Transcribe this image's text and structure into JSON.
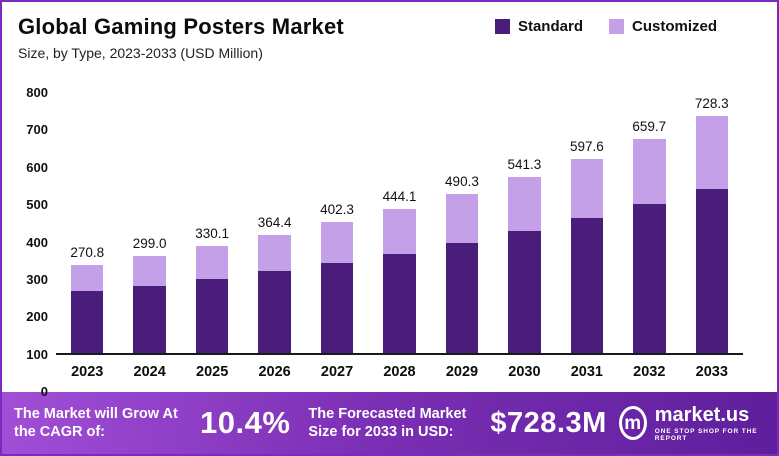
{
  "header": {
    "title": "Global Gaming Posters Market",
    "subtitle": "Size, by Type, 2023-2033 (USD Million)"
  },
  "legend": [
    {
      "label": "Standard",
      "color": "#4a1d7a"
    },
    {
      "label": "Customized",
      "color": "#c3a0e8"
    }
  ],
  "chart_data": {
    "type": "bar",
    "stacked": true,
    "title": "Global Gaming Posters Market Size, by Type, 2023-2033 (USD Million)",
    "categories": [
      "2023",
      "2024",
      "2025",
      "2026",
      "2027",
      "2028",
      "2029",
      "2030",
      "2031",
      "2032",
      "2033"
    ],
    "series": [
      {
        "name": "Standard",
        "color": "#4a1d7a",
        "values": [
          190,
          207,
          228,
          251,
          278,
          306,
          340,
          375,
          415,
          458,
          505
        ]
      },
      {
        "name": "Customized",
        "color": "#c3a0e8",
        "values": [
          80.8,
          92.0,
          102.1,
          113.4,
          124.3,
          138.1,
          150.3,
          166.3,
          182.6,
          201.7,
          223.3
        ]
      }
    ],
    "totals": [
      270.8,
      299.0,
      330.1,
      364.4,
      402.3,
      444.1,
      490.3,
      541.3,
      597.6,
      659.7,
      728.3
    ],
    "total_labels": [
      "270.8",
      "299.0",
      "330.1",
      "364.4",
      "402.3",
      "444.1",
      "490.3",
      "541.3",
      "597.6",
      "659.7",
      "728.3"
    ],
    "ylim": [
      0,
      800
    ],
    "yticks": [
      "800",
      "700",
      "600",
      "500",
      "400",
      "300",
      "200",
      "100",
      "0"
    ],
    "legend_position": "top-right",
    "grid": false
  },
  "footer": {
    "cagr_label": "The Market will Grow At the CAGR of:",
    "cagr_value": "10.4%",
    "forecast_label": "The Forecasted Market Size for 2033 in USD:",
    "forecast_value": "$728.3M",
    "brand": "market.us",
    "brand_icon_letter": "m",
    "brand_tagline": "ONE STOP SHOP FOR THE REPORT"
  }
}
